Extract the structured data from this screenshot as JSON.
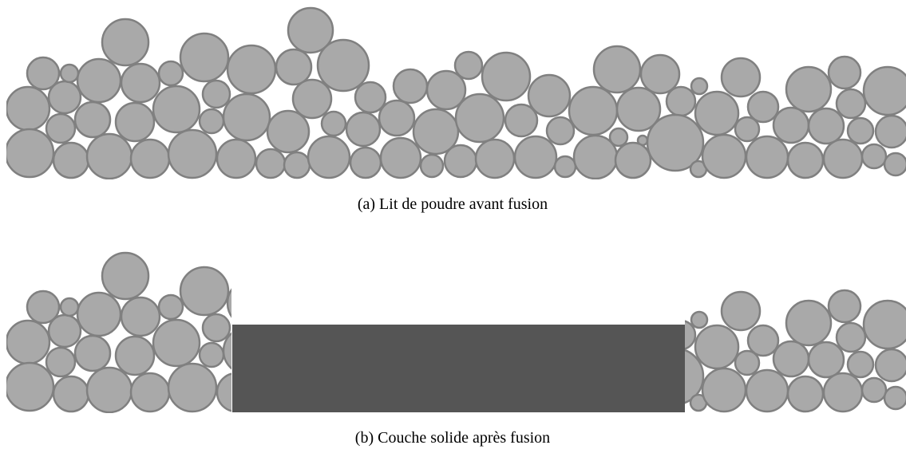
{
  "figure": {
    "panels": [
      {
        "caption": "(a) Lit de poudre avant fusion"
      },
      {
        "caption": "(b) Couche solide après fusion"
      }
    ]
  }
}
